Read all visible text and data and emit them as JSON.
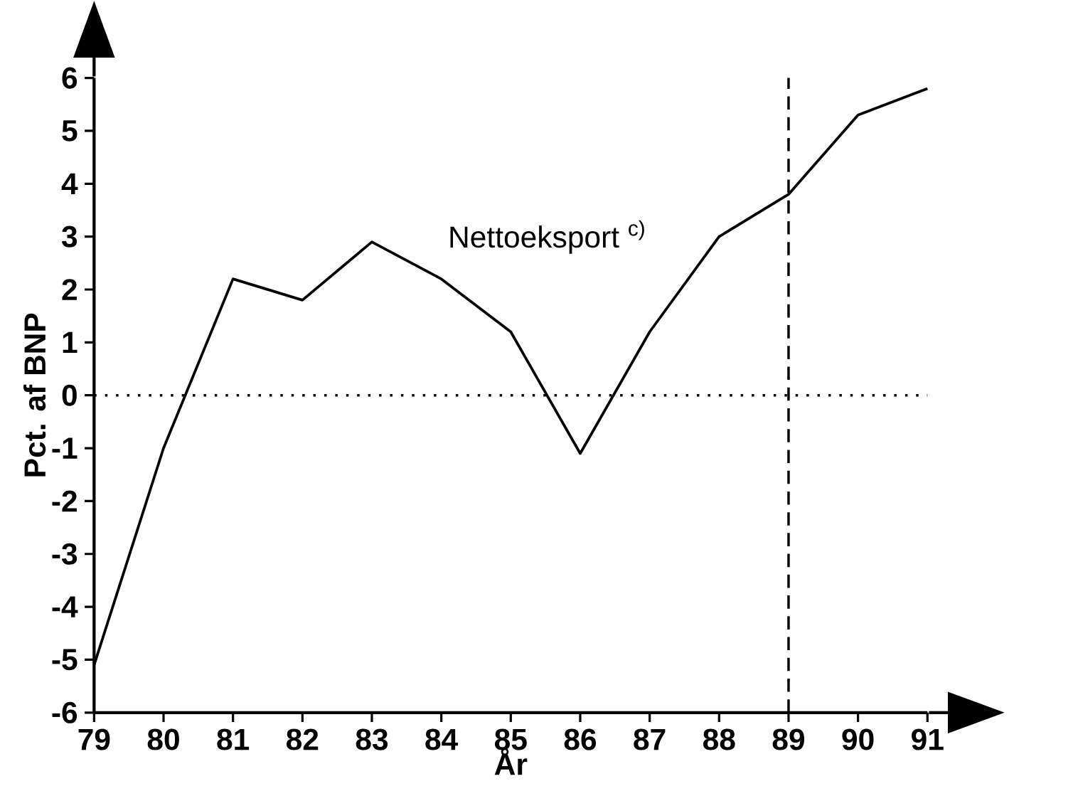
{
  "chart_data": {
    "type": "line",
    "xlabel": "År",
    "ylabel": "Pct. af BNP",
    "x": [
      79,
      80,
      81,
      82,
      83,
      84,
      85,
      86,
      87,
      88,
      89,
      90,
      91
    ],
    "series": [
      {
        "name": "Nettoeksport $^{c)}$",
        "color": "#000000",
        "values": [
          -5.1,
          -1.0,
          2.2,
          1.8,
          2.9,
          2.2,
          1.2,
          -1.1,
          1.2,
          3.0,
          3.8,
          5.3,
          5.8
        ]
      }
    ],
    "xlim": [
      79,
      91
    ],
    "xticks": [
      79,
      80,
      81,
      82,
      83,
      84,
      85,
      86,
      87,
      88,
      89,
      90,
      91
    ],
    "ylim": [
      -6,
      6
    ],
    "yticks": [
      -6,
      -5,
      -4,
      -3,
      -2,
      -1,
      0,
      1,
      2,
      3,
      4,
      5,
      6
    ],
    "ref_lines": [
      {
        "axis": "y",
        "value": 0,
        "line_style": "dotted"
      },
      {
        "axis": "x",
        "value": 89,
        "line_style": "dashed"
      }
    ],
    "line_style": "solid",
    "marker": "none",
    "grid": false,
    "legend": false
  }
}
